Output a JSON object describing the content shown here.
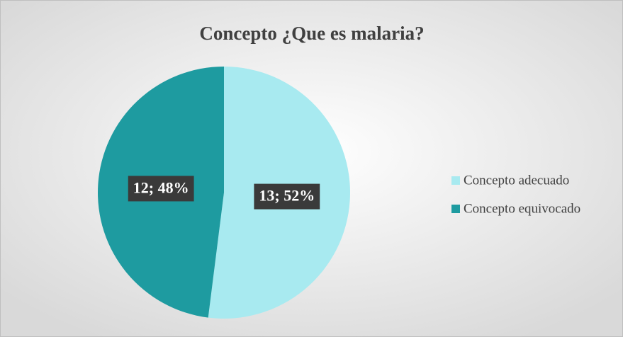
{
  "chart_data": {
    "type": "pie",
    "title": "Concepto ¿Que es malaria?",
    "categories": [
      "Concepto adecuado",
      "Concepto equivocado"
    ],
    "values": [
      13,
      12
    ],
    "value_labels": [
      "13; 52%",
      "12; 48%"
    ],
    "colors": [
      "#a8eaf0",
      "#1e9ba0"
    ],
    "legend": "right"
  }
}
